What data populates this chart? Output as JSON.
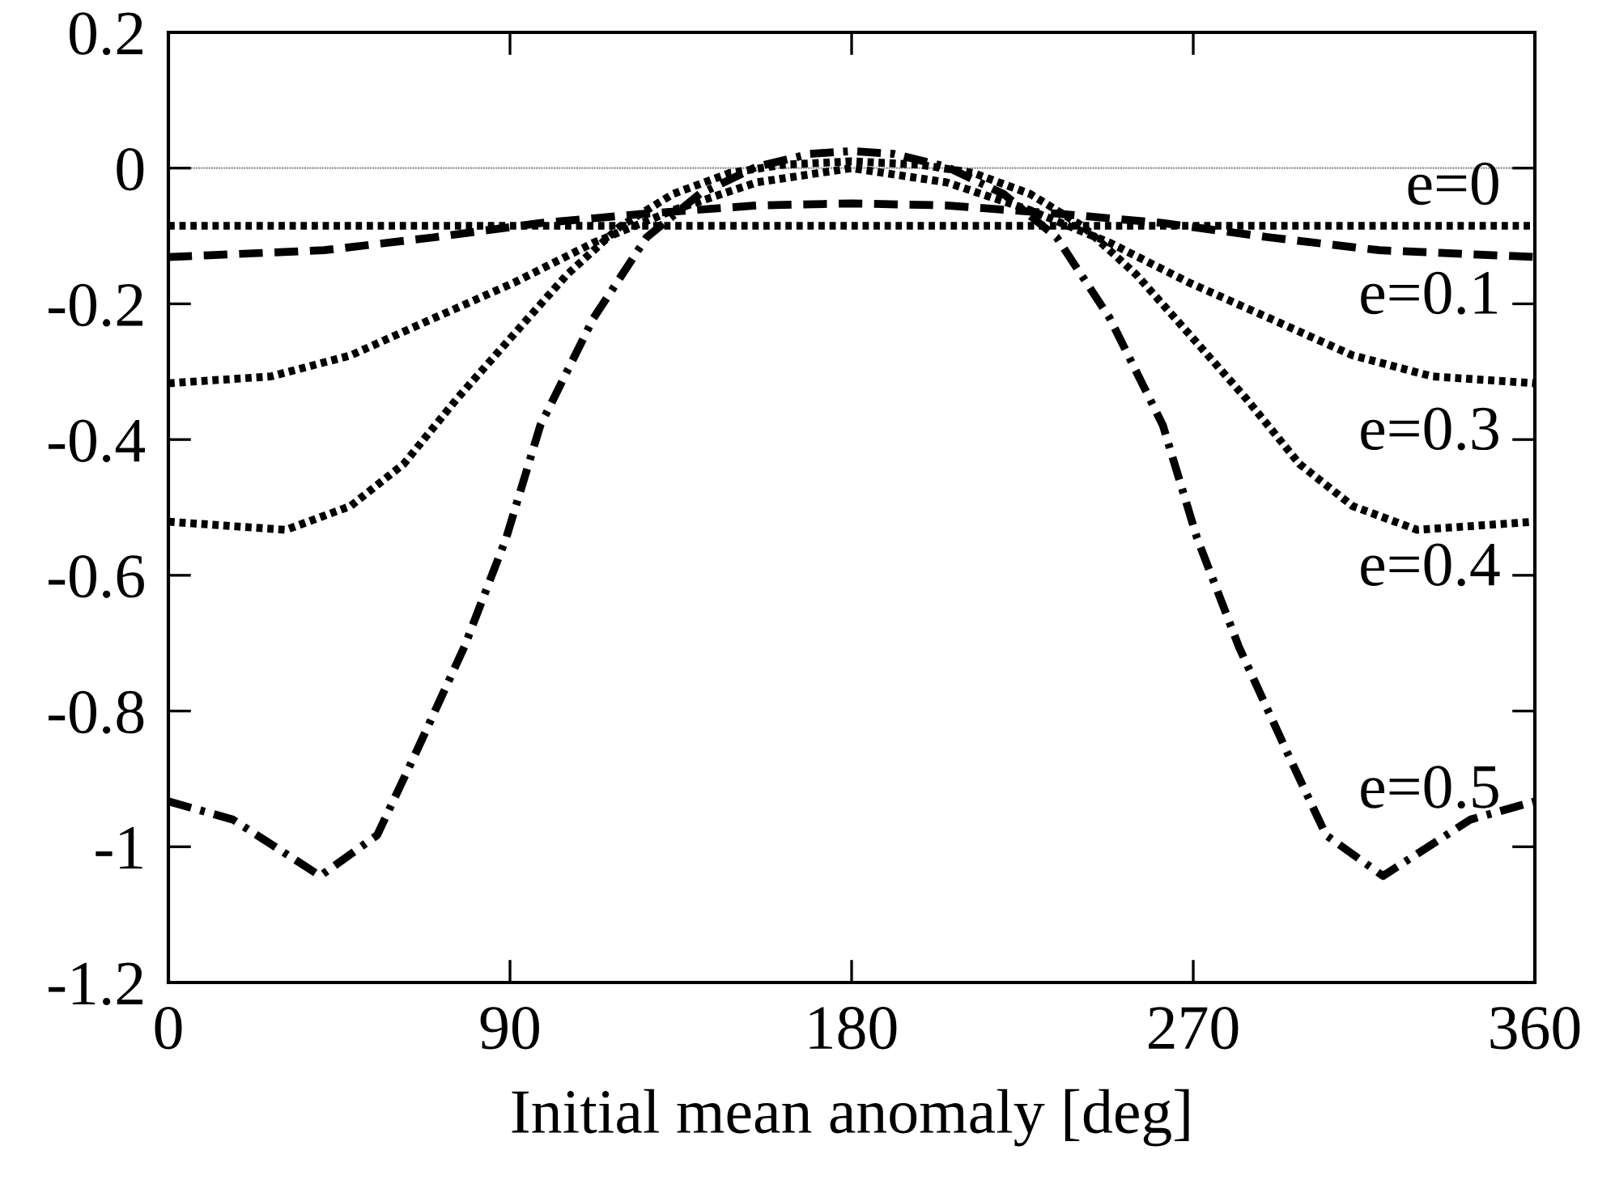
{
  "chart_data": {
    "type": "line",
    "xlabel": "Initial mean anomaly [deg]",
    "xlim": [
      0,
      360
    ],
    "xticks": [
      0,
      90,
      180,
      270,
      360
    ],
    "ylim": [
      -1.2,
      0.2
    ],
    "yticks": [
      -1.2,
      -1,
      -0.8,
      -0.6,
      -0.4,
      -0.2,
      0,
      0.2
    ],
    "grid": false,
    "legend": false,
    "marker": "none",
    "ref_lines": [
      {
        "axis": "y",
        "value": 0,
        "color": "#808080",
        "line_style": "dotted"
      }
    ],
    "series": [
      {
        "color": "#000000",
        "line_style": "dotted",
        "x": [
          0,
          360
        ],
        "values": [
          -0.085,
          -0.085
        ]
      },
      {
        "color": "#000000",
        "line_style": "dashed",
        "x": [
          0,
          41,
          70,
          98,
          126,
          155,
          180,
          205,
          234,
          262,
          290,
          319,
          360
        ],
        "values": [
          -0.131,
          -0.121,
          -0.102,
          -0.081,
          -0.067,
          -0.055,
          -0.052,
          -0.055,
          -0.067,
          -0.081,
          -0.102,
          -0.121,
          -0.131
        ]
      },
      {
        "color": "#000000",
        "line_style": "dotted",
        "x": [
          0,
          27,
          48,
          70,
          91,
          112,
          133,
          155,
          180,
          205,
          227,
          248,
          269,
          290,
          312,
          333,
          360
        ],
        "values": [
          -0.317,
          -0.307,
          -0.276,
          -0.221,
          -0.169,
          -0.11,
          -0.062,
          -0.021,
          0.0,
          -0.021,
          -0.062,
          -0.11,
          -0.169,
          -0.221,
          -0.276,
          -0.307,
          -0.317
        ]
      },
      {
        "color": "#000000",
        "line_style": "dotted",
        "x": [
          0,
          31,
          48,
          62,
          76,
          91,
          105,
          119,
          133,
          148,
          162,
          180,
          198,
          212,
          227,
          241,
          255,
          269,
          284,
          298,
          312,
          329,
          360
        ],
        "values": [
          -0.521,
          -0.533,
          -0.498,
          -0.436,
          -0.34,
          -0.245,
          -0.157,
          -0.086,
          -0.038,
          -0.007,
          0.005,
          0.01,
          0.005,
          -0.007,
          -0.038,
          -0.086,
          -0.157,
          -0.245,
          -0.34,
          -0.436,
          -0.498,
          -0.533,
          -0.521
        ]
      },
      {
        "color": "#000000",
        "line_style": "dashdot",
        "x": [
          0,
          17,
          40,
          55,
          65,
          78,
          89,
          98,
          112,
          126,
          140,
          155,
          169,
          180,
          191,
          205,
          220,
          234,
          248,
          262,
          271,
          282,
          295,
          305,
          320,
          343,
          360
        ],
        "values": [
          -0.933,
          -0.96,
          -1.043,
          -0.983,
          -0.864,
          -0.705,
          -0.545,
          -0.379,
          -0.221,
          -0.102,
          -0.038,
          0.002,
          0.021,
          0.025,
          0.021,
          0.002,
          -0.038,
          -0.102,
          -0.221,
          -0.379,
          -0.545,
          -0.705,
          -0.864,
          -0.983,
          -1.043,
          -0.96,
          -0.933
        ]
      }
    ],
    "annotations": [
      "e=0",
      "e=0.1",
      "e=0.3",
      "e=0.4",
      "e=0.5"
    ]
  }
}
